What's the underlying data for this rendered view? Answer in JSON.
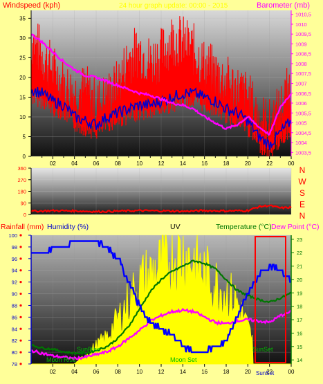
{
  "header": {
    "windspeed_label": "Windspeed (kph)",
    "timestamp": "24 hour graph update: 00:00 - 2015",
    "barometer_label": "Barometer (mb)"
  },
  "wind_dir": {
    "letters": [
      "N",
      "W",
      "S",
      "E",
      "N"
    ]
  },
  "lower_header": {
    "rainfall_label": "Rainfall (mm)",
    "humidity_label": "Humidity (%)",
    "uv_label": "UV",
    "temperature_label": "Temperature (°C)",
    "dewpoint_label": "Dew Point (°C)"
  },
  "annotations": {
    "sunrise": "SunRise",
    "sunset": "SunSet",
    "moonrise": "Moon Rise",
    "moonset": "Moon Set",
    "sunset2": "SunSet"
  },
  "colors": {
    "background": "#ffff99",
    "wind": "#ff0000",
    "gust": "#0000cc",
    "barometer": "#ff00ff",
    "humidity": "#0000ff",
    "temperature": "#008800",
    "dewpoint": "#ff00ff",
    "uv": "#ffff00",
    "title_yellow": "#ffff00"
  },
  "chart_data": [
    {
      "type": "line",
      "title": "Windspeed / Barometer",
      "x_ticks": [
        "02",
        "04",
        "06",
        "08",
        "10",
        "12",
        "14",
        "16",
        "18",
        "20",
        "22",
        "00"
      ],
      "y_left_ticks": [
        "0",
        "5",
        "10",
        "15",
        "20",
        "25",
        "30",
        "35"
      ],
      "y_left_range": [
        0,
        37
      ],
      "y_right_ticks": [
        "1003,5",
        "1004",
        "1004,5",
        "1005",
        "1005,5",
        "1006",
        "1006,5",
        "1007",
        "1007,5",
        "1008",
        "1008,5",
        "1009",
        "1009,5",
        "1010",
        "1010,5"
      ],
      "y_right_range": [
        1003.3,
        1010.7
      ],
      "series": [
        {
          "name": "Gust",
          "x": [
            0,
            1,
            2,
            3,
            4,
            5,
            6,
            7,
            8,
            9,
            10,
            11,
            12,
            13,
            14,
            15,
            16,
            17,
            18,
            19,
            20,
            21,
            22,
            23,
            24
          ],
          "values": [
            30,
            26,
            22,
            18,
            16,
            17,
            13,
            15,
            18,
            25,
            27,
            24,
            26,
            30,
            29,
            27,
            23,
            21,
            19,
            17,
            15,
            10,
            8,
            12,
            18
          ]
        },
        {
          "name": "Wind",
          "x": [
            0,
            1,
            2,
            3,
            4,
            5,
            6,
            7,
            8,
            9,
            10,
            11,
            12,
            13,
            14,
            15,
            16,
            17,
            18,
            19,
            20,
            21,
            22,
            23,
            24
          ],
          "values": [
            17,
            16,
            14,
            13,
            10,
            9,
            8,
            10,
            11,
            12,
            13,
            13,
            14,
            15,
            16,
            16,
            15,
            14,
            12,
            11,
            9,
            5,
            3,
            6,
            9
          ]
        },
        {
          "name": "Barometer",
          "x": [
            0,
            1,
            2,
            3,
            4,
            5,
            6,
            7,
            8,
            9,
            10,
            11,
            12,
            13,
            14,
            15,
            16,
            17,
            18,
            19,
            20,
            21,
            22,
            23,
            24
          ],
          "values": [
            1009.5,
            1009.1,
            1008.6,
            1008.1,
            1007.7,
            1007.4,
            1007.3,
            1007.1,
            1006.9,
            1006.7,
            1006.5,
            1006.4,
            1006.2,
            1006.0,
            1005.9,
            1005.7,
            1005.3,
            1005.0,
            1004.7,
            1004.9,
            1005.3,
            1004.8,
            1004.4,
            1005.8,
            1006.5
          ]
        }
      ]
    },
    {
      "type": "scatter",
      "title": "Wind Direction",
      "y_ticks": [
        "0",
        "90",
        "180",
        "270",
        "360"
      ],
      "y_range": [
        0,
        360
      ],
      "series": [
        {
          "name": "Direction",
          "x": [
            0,
            2,
            4,
            6,
            8,
            10,
            12,
            14,
            16,
            18,
            20,
            21,
            22,
            23,
            24
          ],
          "values": [
            25,
            30,
            28,
            22,
            26,
            30,
            28,
            25,
            30,
            28,
            30,
            60,
            70,
            50,
            55
          ]
        }
      ]
    },
    {
      "type": "line",
      "title": "Humidity / Temperature / UV",
      "x_ticks": [
        "02",
        "04",
        "06",
        "08",
        "10",
        "12",
        "14",
        "16",
        "18",
        "20",
        "22",
        "00"
      ],
      "y_left_ticks": [
        "78",
        "80",
        "82",
        "84",
        "86",
        "88",
        "90",
        "92",
        "94",
        "96",
        "98",
        "100"
      ],
      "y_left_range": [
        78,
        100
      ],
      "y_right_ticks": [
        "14",
        "15",
        "16",
        "17",
        "18",
        "19",
        "20",
        "21",
        "22",
        "23"
      ],
      "y_right_range": [
        13.7,
        23.3
      ],
      "series": [
        {
          "name": "Humidity",
          "x": [
            0,
            1,
            2,
            3,
            4,
            5,
            6,
            7,
            8,
            9,
            10,
            11,
            12,
            13,
            14,
            15,
            16,
            17,
            18,
            19,
            20,
            21,
            22,
            23,
            24
          ],
          "values": [
            97,
            97,
            98,
            98,
            99,
            99,
            99,
            98,
            96,
            92,
            88,
            85,
            84,
            83,
            81,
            80,
            80,
            81,
            82,
            86,
            90,
            93,
            95,
            94,
            92
          ]
        },
        {
          "name": "Temperature",
          "x": [
            0,
            1,
            2,
            3,
            4,
            5,
            6,
            7,
            8,
            9,
            10,
            11,
            12,
            13,
            14,
            15,
            16,
            17,
            18,
            19,
            20,
            21,
            22,
            23,
            24
          ],
          "values": [
            15.1,
            14.9,
            14.8,
            14.6,
            14.5,
            14.5,
            14.7,
            15.0,
            15.6,
            16.5,
            17.8,
            19.1,
            20.0,
            20.6,
            21.0,
            21.4,
            21.2,
            20.8,
            20.0,
            19.2,
            18.8,
            18.5,
            18.3,
            18.6,
            19.0
          ]
        },
        {
          "name": "Dew Point",
          "x": [
            0,
            1,
            2,
            3,
            4,
            5,
            6,
            7,
            8,
            9,
            10,
            11,
            12,
            13,
            14,
            15,
            16,
            17,
            18,
            19,
            20,
            21,
            22,
            23,
            24
          ],
          "values": [
            14.7,
            14.5,
            14.3,
            14.2,
            14.1,
            14.2,
            14.4,
            14.6,
            15.0,
            15.6,
            16.2,
            16.9,
            17.3,
            17.6,
            17.7,
            17.6,
            17.2,
            16.8,
            16.7,
            16.9,
            17.0,
            16.9,
            16.8,
            17.3,
            17.6
          ]
        },
        {
          "name": "UV",
          "x": [
            0,
            1,
            2,
            3,
            4,
            5,
            6,
            7,
            8,
            9,
            10,
            11,
            12,
            13,
            14,
            15,
            16,
            17,
            18,
            19,
            20,
            21,
            22,
            23,
            24
          ],
          "values": [
            0,
            0,
            0,
            0,
            0,
            0.5,
            1.0,
            1.5,
            2.5,
            3.5,
            4.5,
            5.0,
            5.5,
            6.0,
            6.2,
            5.8,
            5.0,
            4.5,
            4.0,
            3.5,
            2.0,
            0.5,
            0,
            0,
            0
          ]
        }
      ]
    }
  ]
}
